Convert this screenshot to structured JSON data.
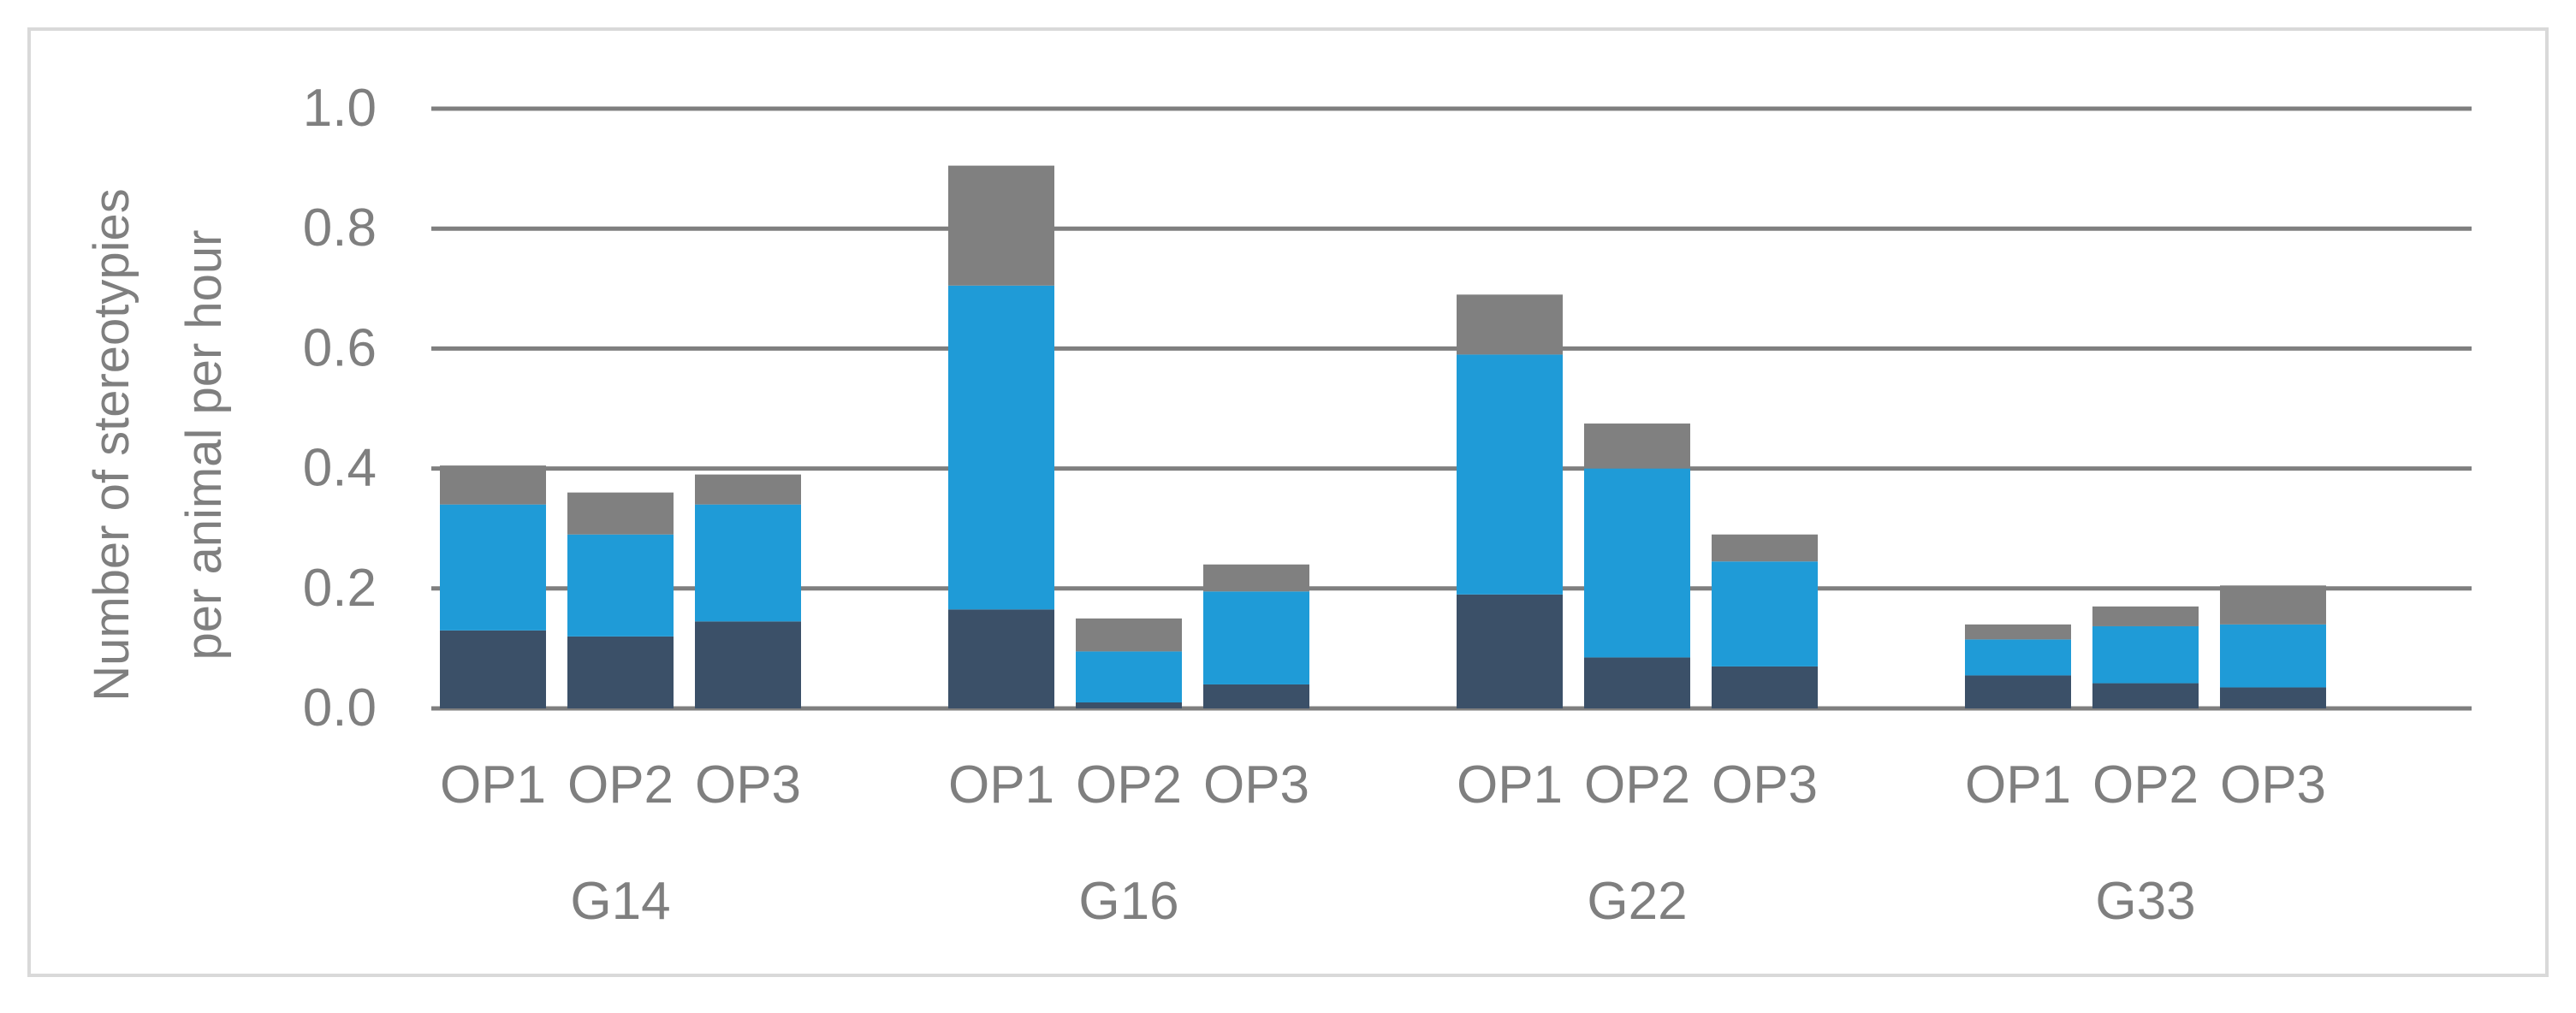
{
  "chart_data": {
    "type": "bar",
    "stacked": true,
    "title": "",
    "ylabel": [
      "Number of stereotypies",
      "per animal per hour"
    ],
    "xlabel": "",
    "ylim": [
      0,
      1.0
    ],
    "yticks": [
      "0.0",
      "0.2",
      "0.4",
      "0.6",
      "0.8",
      "1.0"
    ],
    "grid": true,
    "legend": "none",
    "groups": [
      {
        "name": "G14",
        "categories": [
          "OP1",
          "OP2",
          "OP3"
        ]
      },
      {
        "name": "G16",
        "categories": [
          "OP1",
          "OP2",
          "OP3"
        ]
      },
      {
        "name": "G22",
        "categories": [
          "OP1",
          "OP2",
          "OP3"
        ]
      },
      {
        "name": "G33",
        "categories": [
          "OP1",
          "OP2",
          "OP3"
        ]
      }
    ],
    "series": [
      {
        "color": "#3b5068",
        "values": [
          0.13,
          0.12,
          0.145,
          0.165,
          0.01,
          0.04,
          0.19,
          0.085,
          0.07,
          0.055,
          0.042,
          0.035
        ]
      },
      {
        "color": "#1f9bd7",
        "values": [
          0.21,
          0.17,
          0.195,
          0.54,
          0.085,
          0.155,
          0.4,
          0.315,
          0.175,
          0.06,
          0.095,
          0.105
        ]
      },
      {
        "color": "#808080",
        "values": [
          0.065,
          0.07,
          0.05,
          0.2,
          0.055,
          0.045,
          0.1,
          0.075,
          0.045,
          0.025,
          0.033,
          0.065
        ]
      }
    ]
  },
  "colors": {
    "gridline": "#7f7f7f",
    "text": "#7f7f7f",
    "frame": "#d9d9d9"
  }
}
